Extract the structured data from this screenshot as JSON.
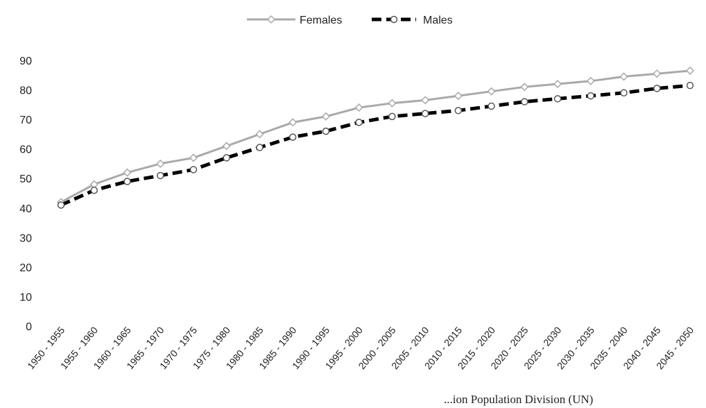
{
  "chart_data": {
    "type": "line",
    "categories": [
      "1950 - 1955",
      "1955 - 1960",
      "1960 - 1965",
      "1965 - 1970",
      "1970 - 1975",
      "1975 - 1980",
      "1980 - 1985",
      "1985 - 1990",
      "1990 - 1995",
      "1995 - 2000",
      "2000 - 2005",
      "2005 - 2010",
      "2010 - 2015",
      "2015 - 2020",
      "2020 - 2025",
      "2025 - 2030",
      "2030 - 2035",
      "2035 - 2040",
      "2040 - 2045",
      "2045 - 2050"
    ],
    "series": [
      {
        "name": "Females",
        "color": "#a9a9a9",
        "style": "solid",
        "marker": "diamond",
        "values": [
          42,
          48,
          52,
          55,
          57,
          61,
          65,
          69,
          71,
          74,
          75.5,
          76.5,
          78,
          79.5,
          81,
          82,
          83,
          84.5,
          85.5,
          86.5
        ]
      },
      {
        "name": "Males",
        "color": "#000000",
        "style": "dashed",
        "marker": "circle",
        "values": [
          41,
          46,
          49,
          51,
          53,
          57,
          60.5,
          64,
          66,
          69,
          71,
          72,
          73,
          74.5,
          76,
          77,
          78,
          79,
          80.5,
          81.5
        ]
      }
    ],
    "ylim": [
      0,
      90
    ],
    "yticks": [
      0,
      10,
      20,
      30,
      40,
      50,
      60,
      70,
      80,
      90
    ],
    "grid": false,
    "legend_position": "top-center"
  },
  "footer_text": "...ion  Population  Division  (UN)"
}
